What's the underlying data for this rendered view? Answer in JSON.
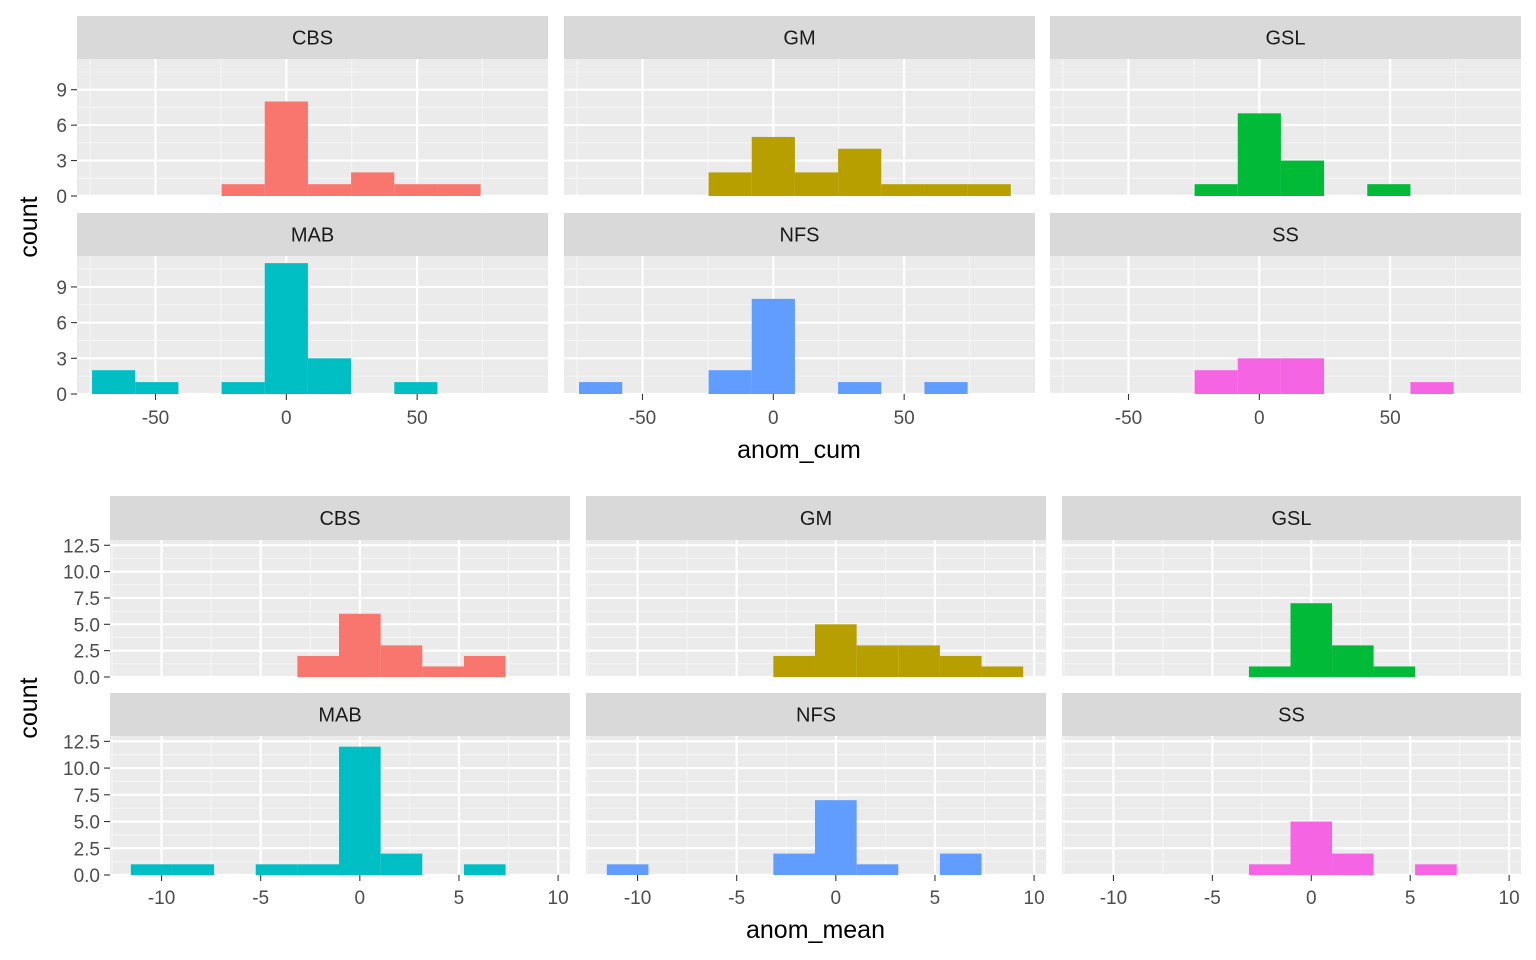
{
  "chart_data": [
    {
      "type": "bar",
      "subtype": "faceted-histogram",
      "xlabel": "anom_cum",
      "ylabel": "count",
      "xlim": [
        -80,
        100
      ],
      "ylim": [
        0,
        11.6
      ],
      "xticks": [
        -50,
        0,
        50
      ],
      "yticks": [
        0,
        3,
        6,
        9
      ],
      "bin_width": 16.5,
      "grid": true,
      "legend": "none",
      "facets": [
        {
          "name": "CBS",
          "color": "#F8766D",
          "bars": [
            {
              "x": -16.5,
              "count": 1
            },
            {
              "x": 0,
              "count": 8
            },
            {
              "x": 16.5,
              "count": 1
            },
            {
              "x": 33,
              "count": 2
            },
            {
              "x": 49.5,
              "count": 1
            },
            {
              "x": 66,
              "count": 1
            }
          ]
        },
        {
          "name": "GM",
          "color": "#B79F00",
          "bars": [
            {
              "x": -16.5,
              "count": 2
            },
            {
              "x": 0,
              "count": 5
            },
            {
              "x": 16.5,
              "count": 2
            },
            {
              "x": 33,
              "count": 4
            },
            {
              "x": 49.5,
              "count": 1
            },
            {
              "x": 66,
              "count": 1
            },
            {
              "x": 82.5,
              "count": 1
            }
          ]
        },
        {
          "name": "GSL",
          "color": "#00BA38",
          "bars": [
            {
              "x": -16.5,
              "count": 1
            },
            {
              "x": 0,
              "count": 7
            },
            {
              "x": 16.5,
              "count": 3
            },
            {
              "x": 49.5,
              "count": 1
            }
          ]
        },
        {
          "name": "MAB",
          "color": "#00BFC4",
          "bars": [
            {
              "x": -66,
              "count": 2
            },
            {
              "x": -49.5,
              "count": 1
            },
            {
              "x": -16.5,
              "count": 1
            },
            {
              "x": 0,
              "count": 11
            },
            {
              "x": 16.5,
              "count": 3
            },
            {
              "x": 49.5,
              "count": 1
            }
          ]
        },
        {
          "name": "NFS",
          "color": "#619CFF",
          "bars": [
            {
              "x": -66,
              "count": 1
            },
            {
              "x": -16.5,
              "count": 2
            },
            {
              "x": 0,
              "count": 8
            },
            {
              "x": 33,
              "count": 1
            },
            {
              "x": 66,
              "count": 1
            }
          ]
        },
        {
          "name": "SS",
          "color": "#F564E3",
          "bars": [
            {
              "x": -16.5,
              "count": 2
            },
            {
              "x": 0,
              "count": 3
            },
            {
              "x": 16.5,
              "count": 3
            },
            {
              "x": 66,
              "count": 1
            }
          ]
        }
      ]
    },
    {
      "type": "bar",
      "subtype": "faceted-histogram",
      "xlabel": "anom_mean",
      "ylabel": "count",
      "xlim": [
        -12.6,
        10.6
      ],
      "ylim": [
        0,
        13
      ],
      "xticks": [
        -10,
        -5,
        0,
        5,
        10
      ],
      "yticks": [
        0,
        2.5,
        5,
        7.5,
        10,
        12.5
      ],
      "ytick_labels": [
        "0.0",
        "2.5",
        "5.0",
        "7.5",
        "10.0",
        "12.5"
      ],
      "bin_width": 2.1,
      "grid": true,
      "legend": "none",
      "facets": [
        {
          "name": "CBS",
          "color": "#F8766D",
          "bars": [
            {
              "x": -2.1,
              "count": 2
            },
            {
              "x": 0,
              "count": 6
            },
            {
              "x": 2.1,
              "count": 3
            },
            {
              "x": 4.2,
              "count": 1
            },
            {
              "x": 6.3,
              "count": 2
            }
          ]
        },
        {
          "name": "GM",
          "color": "#B79F00",
          "bars": [
            {
              "x": -2.1,
              "count": 2
            },
            {
              "x": 0,
              "count": 5
            },
            {
              "x": 2.1,
              "count": 3
            },
            {
              "x": 4.2,
              "count": 3
            },
            {
              "x": 6.3,
              "count": 2
            },
            {
              "x": 8.4,
              "count": 1
            }
          ]
        },
        {
          "name": "GSL",
          "color": "#00BA38",
          "bars": [
            {
              "x": -2.1,
              "count": 1
            },
            {
              "x": 0,
              "count": 7
            },
            {
              "x": 2.1,
              "count": 3
            },
            {
              "x": 4.2,
              "count": 1
            }
          ]
        },
        {
          "name": "MAB",
          "color": "#00BFC4",
          "bars": [
            {
              "x": -10.5,
              "count": 1
            },
            {
              "x": -8.4,
              "count": 1
            },
            {
              "x": -4.2,
              "count": 1
            },
            {
              "x": -2.1,
              "count": 1
            },
            {
              "x": 0,
              "count": 12
            },
            {
              "x": 2.1,
              "count": 2
            },
            {
              "x": 6.3,
              "count": 1
            }
          ]
        },
        {
          "name": "NFS",
          "color": "#619CFF",
          "bars": [
            {
              "x": -10.5,
              "count": 1
            },
            {
              "x": -2.1,
              "count": 2
            },
            {
              "x": 0,
              "count": 7
            },
            {
              "x": 2.1,
              "count": 1
            },
            {
              "x": 6.3,
              "count": 2
            }
          ]
        },
        {
          "name": "SS",
          "color": "#F564E3",
          "bars": [
            {
              "x": -2.1,
              "count": 1
            },
            {
              "x": 0,
              "count": 5
            },
            {
              "x": 2.1,
              "count": 2
            },
            {
              "x": 6.3,
              "count": 1
            }
          ]
        }
      ]
    }
  ]
}
